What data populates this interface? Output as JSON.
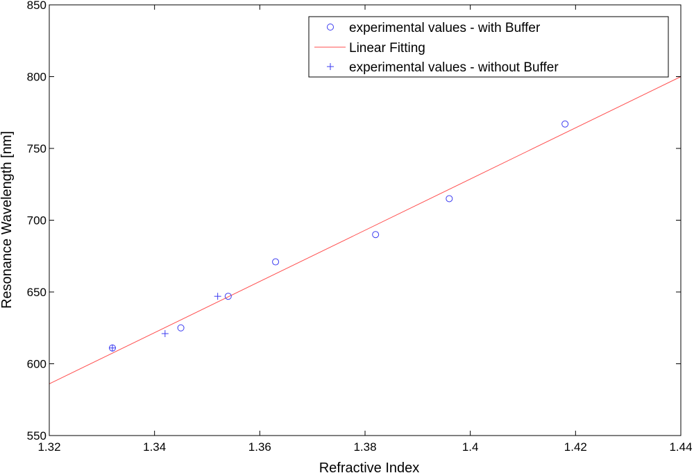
{
  "chart_data": {
    "type": "scatter",
    "title": "",
    "xlabel": "Refractive Index",
    "ylabel": "Resonance Wavelength [nm]",
    "xlim": [
      1.32,
      1.44
    ],
    "ylim": [
      550,
      850
    ],
    "xticks": [
      1.32,
      1.34,
      1.36,
      1.38,
      1.4,
      1.42,
      1.44
    ],
    "xtick_labels": [
      "1.32",
      "1.34",
      "1.36",
      "1.38",
      "1.4",
      "1.42",
      "1.44"
    ],
    "yticks": [
      550,
      600,
      650,
      700,
      750,
      800,
      850
    ],
    "ytick_labels": [
      "550",
      "600",
      "650",
      "700",
      "750",
      "800",
      "850"
    ],
    "grid": false,
    "legend_position": "top-right",
    "series": [
      {
        "name": "experimental values - with Buffer",
        "marker": "circle",
        "color": "#3a3af0",
        "points": [
          {
            "x": 1.332,
            "y": 611
          },
          {
            "x": 1.345,
            "y": 625
          },
          {
            "x": 1.354,
            "y": 647
          },
          {
            "x": 1.363,
            "y": 671
          },
          {
            "x": 1.382,
            "y": 690
          },
          {
            "x": 1.396,
            "y": 715
          },
          {
            "x": 1.418,
            "y": 767
          }
        ]
      },
      {
        "name": "Linear Fitting",
        "marker": "line",
        "color": "#ff4d4d",
        "points": [
          {
            "x": 1.32,
            "y": 586
          },
          {
            "x": 1.44,
            "y": 800
          }
        ]
      },
      {
        "name": "experimental values - without Buffer",
        "marker": "plus",
        "color": "#3a3af0",
        "points": [
          {
            "x": 1.332,
            "y": 611
          },
          {
            "x": 1.342,
            "y": 621
          },
          {
            "x": 1.352,
            "y": 647
          }
        ]
      }
    ]
  }
}
